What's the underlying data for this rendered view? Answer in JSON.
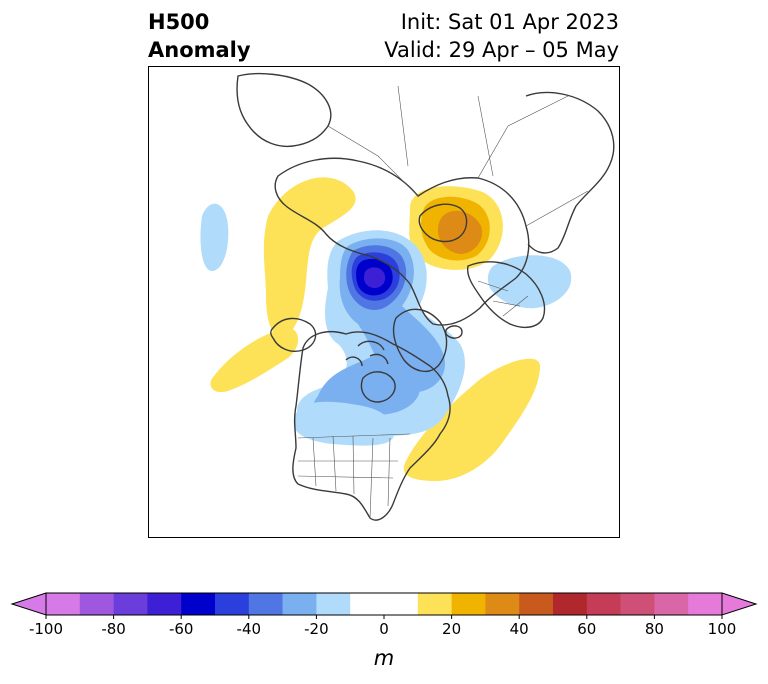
{
  "header": {
    "left_line1": "H500",
    "left_line2": "Anomaly",
    "init": "Init: Sat 01 Apr 2023",
    "valid": "Valid: 29 Apr – 05 May"
  },
  "map": {
    "projection": "north polar stereographic",
    "field": "500 hPa geopotential height anomaly",
    "features": [
      {
        "name": "negative-anomaly-center",
        "region": "Arctic Ocean north of Siberia",
        "min_value": -70
      },
      {
        "name": "negative-anomaly-trough",
        "region": "Hudson Bay to central Canada / northern US",
        "min_value": -30
      },
      {
        "name": "negative-anomaly",
        "region": "Western Siberia",
        "min_value": -20
      },
      {
        "name": "negative-anomaly",
        "region": "North Pacific",
        "min_value": -20
      },
      {
        "name": "positive-anomaly-center",
        "region": "Scandinavia / Barents",
        "max_value": 40
      },
      {
        "name": "positive-anomaly",
        "region": "Eastern Siberia / Kamchatka",
        "max_value": 20
      },
      {
        "name": "positive-anomaly",
        "region": "Gulf of Alaska / NE Pacific",
        "max_value": 20
      },
      {
        "name": "positive-anomaly",
        "region": "Western Atlantic off US East Coast",
        "max_value": 20
      }
    ]
  },
  "colorbar": {
    "unit": "m",
    "tick_labels": [
      "-100",
      "-80",
      "-60",
      "-40",
      "-20",
      "0",
      "20",
      "40",
      "60",
      "80",
      "100"
    ],
    "levels": [
      -100,
      -90,
      -80,
      -70,
      -60,
      -50,
      -40,
      -30,
      -20,
      -10,
      10,
      20,
      30,
      40,
      50,
      60,
      70,
      80,
      90,
      100
    ],
    "colors": [
      "#d57ae6",
      "#9f57e0",
      "#6b3ddb",
      "#3d1fd6",
      "#0000cc",
      "#2a3fdb",
      "#4f76e3",
      "#7aaff0",
      "#b0dbfb",
      "#ffffff",
      "#fde257",
      "#f0b400",
      "#de8a16",
      "#c95a1e",
      "#b0272c",
      "#c43c55",
      "#cf5077",
      "#d966a6",
      "#e67adb"
    ],
    "under_color": "#d57ae6",
    "over_color": "#e67adb"
  }
}
